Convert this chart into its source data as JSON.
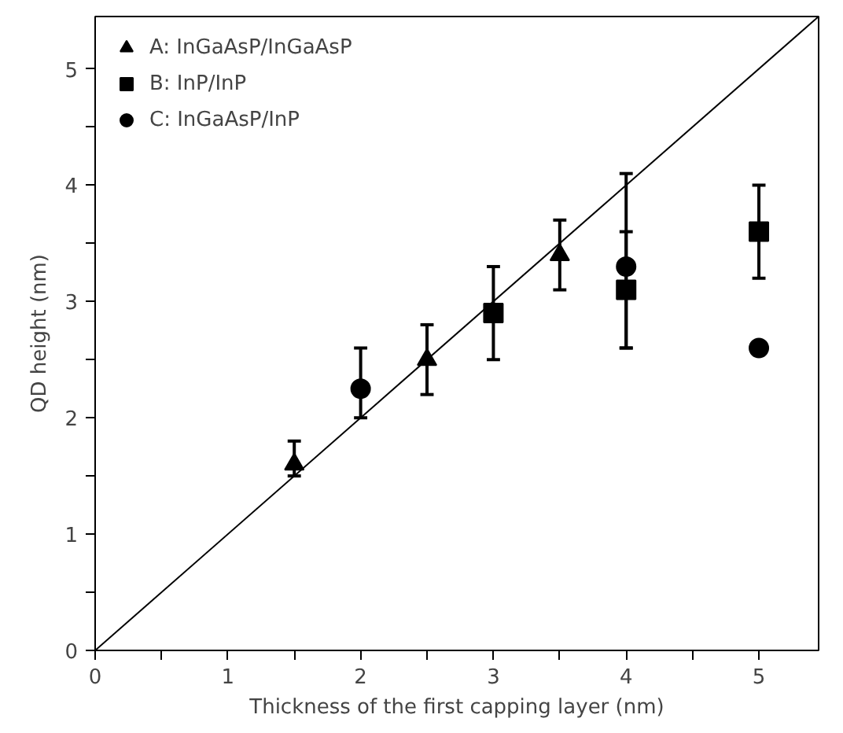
{
  "chart_data": {
    "type": "scatter",
    "xlabel": "Thickness of the first capping layer (nm)",
    "ylabel": "QD height (nm)",
    "xlim": [
      0,
      5.45
    ],
    "ylim": [
      0,
      5.45
    ],
    "xticks": [
      0,
      {
        "value": 0.5,
        "label": null
      },
      1,
      {
        "value": 1.5,
        "label": null
      },
      2,
      {
        "value": 2.5,
        "label": null
      },
      3,
      {
        "value": 3.5,
        "label": null
      },
      4,
      {
        "value": 4.5,
        "label": null
      },
      5
    ],
    "yticks": [
      0,
      {
        "value": 0.5,
        "label": null
      },
      1,
      {
        "value": 1.5,
        "label": null
      },
      2,
      {
        "value": 2.5,
        "label": null
      },
      3,
      {
        "value": 3.5,
        "label": null
      },
      4,
      {
        "value": 4.5,
        "label": null
      },
      5
    ],
    "grid": false,
    "legend": "top left",
    "series": [
      {
        "name": "A: InGaAsP/InGaAsP",
        "color": "#000000",
        "marker": "triangle",
        "x": [
          1.5,
          2.5,
          3.5
        ],
        "values": [
          1.6,
          2.5,
          3.4
        ],
        "errors": [
          [
            1.5,
            1.8
          ],
          [
            2.2,
            2.8
          ],
          [
            3.1,
            3.7
          ]
        ]
      },
      {
        "name": "B: InP/InP",
        "color": "#000000",
        "marker": "square",
        "x": [
          3,
          4,
          5
        ],
        "values": [
          2.9,
          3.1,
          3.6
        ],
        "errors": [
          [
            2.5,
            3.3
          ],
          [
            2.6,
            3.6
          ],
          [
            3.2,
            4.0
          ]
        ]
      },
      {
        "name": "C: InGaAsP/InP",
        "color": "#000000",
        "marker": "circle",
        "x": [
          2,
          4,
          5
        ],
        "values": [
          2.25,
          3.3,
          2.6
        ],
        "errors": [
          [
            2.0,
            2.6
          ],
          [
            2.6,
            4.1
          ],
          null
        ]
      },
      {
        "type": "line",
        "color": "#000000",
        "x": [
          0,
          5.45
        ],
        "values": [
          0,
          5.45
        ]
      }
    ]
  }
}
